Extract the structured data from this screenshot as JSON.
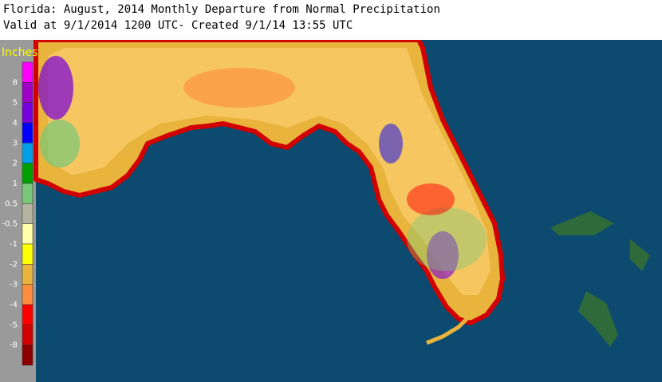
{
  "header": {
    "title": "Florida: August, 2014 Monthly Departure from Normal Precipitation",
    "subtitle": "Valid at 9/1/2014 1200 UTC- Created 9/1/14 13:55 UTC"
  },
  "legend": {
    "title": "Inches",
    "labels": [
      8,
      5,
      4,
      3,
      2,
      1,
      0.5,
      -0.5,
      -1,
      -2,
      -3,
      -4,
      -5,
      -8
    ],
    "colors": [
      "#ff00ff",
      "#a000c8",
      "#7800dc",
      "#0000ff",
      "#00a0e8",
      "#00a000",
      "#78c878",
      "#b4b4a0",
      "#ffffaa",
      "#ffff00",
      "#e8b43c",
      "#ff8c3c",
      "#ff0000",
      "#d20000",
      "#8c0000"
    ]
  }
}
